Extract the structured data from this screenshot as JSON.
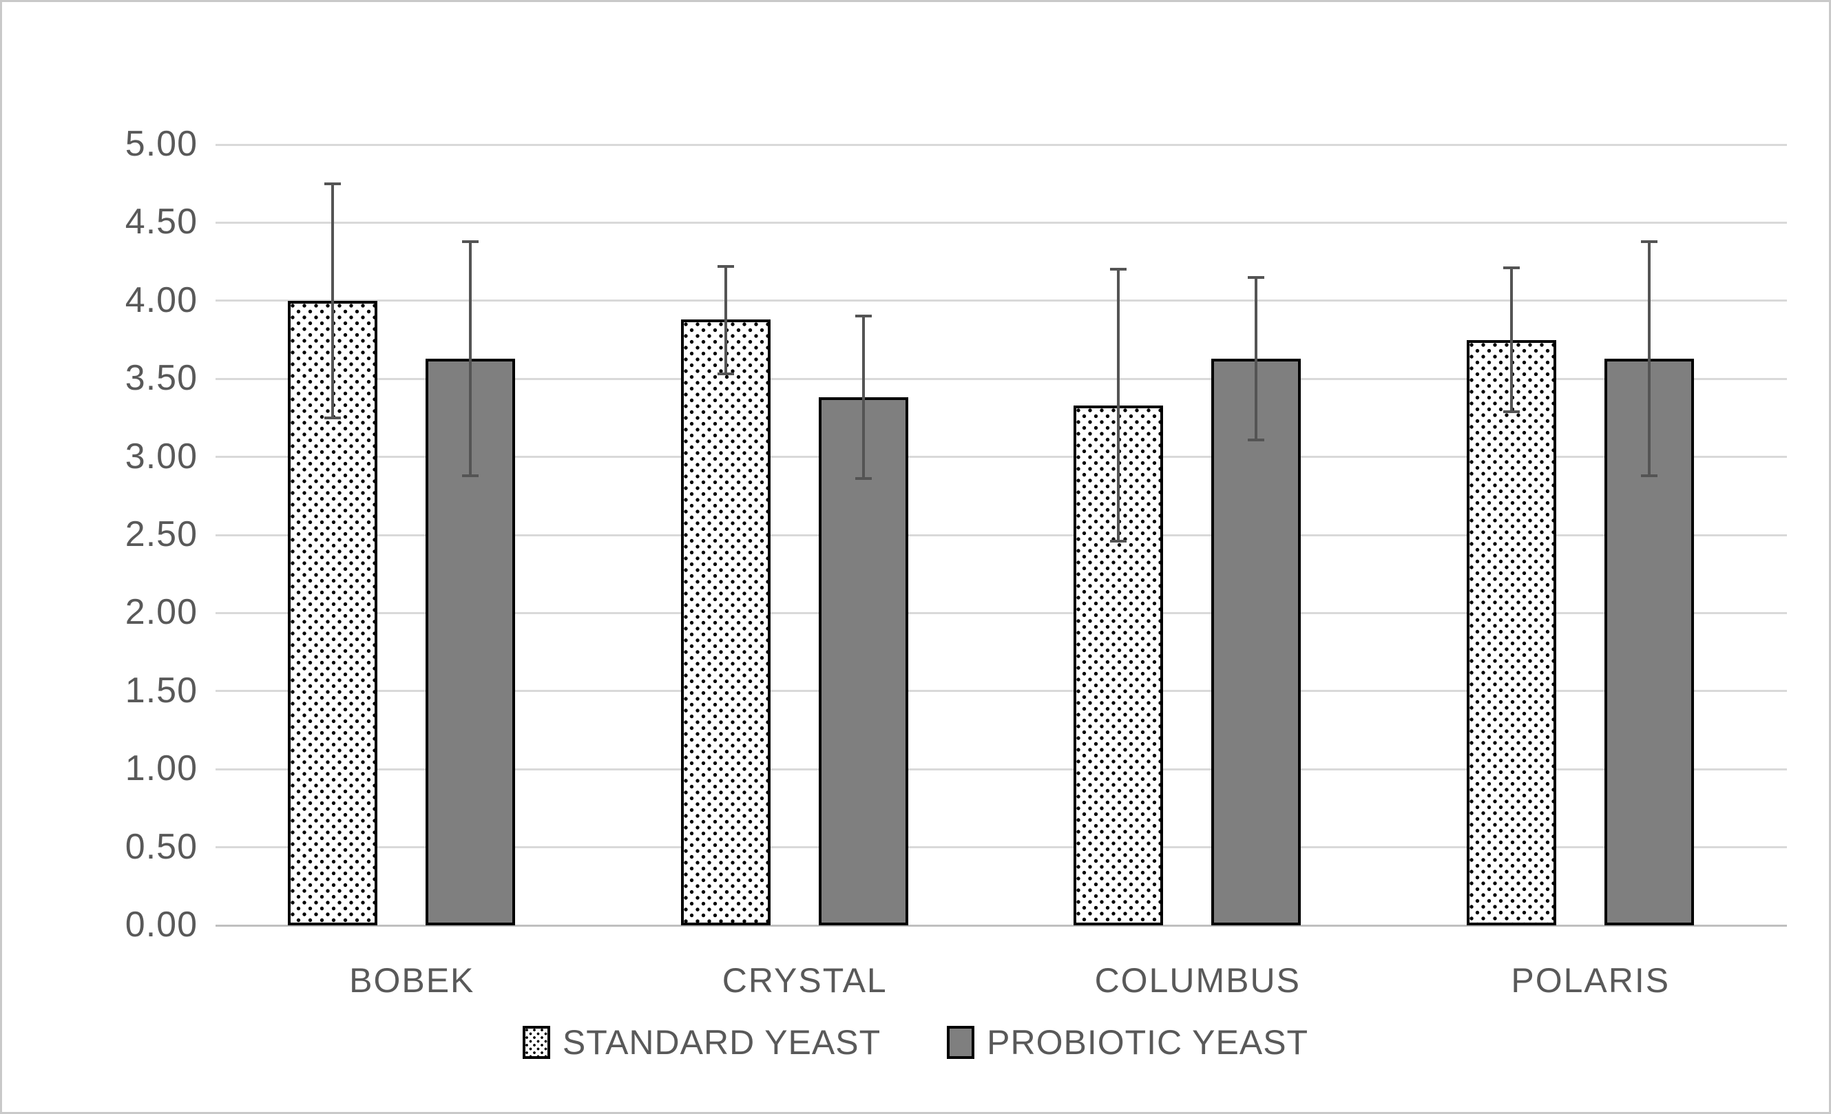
{
  "figure": {
    "background": "#ffffff",
    "frame_color": "#c9c9c9"
  },
  "colors": {
    "text": "#595959",
    "gridline": "#d9d9d9",
    "axis_baseline": "#bfbfbf",
    "error_bar": "#545454",
    "probiotic_fill": "#7f7f7f",
    "bar_border": "#000000",
    "standard_fill": "#ffffff"
  },
  "chart_data": {
    "type": "bar",
    "title": "",
    "xlabel": "",
    "ylabel": "",
    "categories": [
      "BOBEK",
      "CRYSTAL",
      "COLUMBUS",
      "POLARIS"
    ],
    "series": [
      {
        "name": "STANDARD YEAST",
        "style": "dotted-pattern",
        "values": [
          4.0,
          3.88,
          3.33,
          3.75
        ],
        "error_low": [
          3.25,
          3.53,
          2.46,
          3.29
        ],
        "error_high": [
          4.75,
          4.22,
          4.2,
          4.21
        ]
      },
      {
        "name": "PROBIOTIC YEAST",
        "style": "solid-gray",
        "values": [
          3.63,
          3.38,
          3.63,
          3.63
        ],
        "error_low": [
          2.88,
          2.86,
          3.11,
          2.88
        ],
        "error_high": [
          4.38,
          3.9,
          4.15,
          4.38
        ]
      }
    ],
    "ylim": [
      0,
      5
    ],
    "ytick_step": 0.5,
    "yticks": [
      "5.00",
      "4.50",
      "4.00",
      "3.50",
      "3.00",
      "2.50",
      "2.00",
      "1.50",
      "1.00",
      "0.50",
      "0.00"
    ],
    "grid": true,
    "legend_position": "bottom"
  },
  "layout_note": "grouped bar chart with symmetric error bars, no title, legend below x axis"
}
